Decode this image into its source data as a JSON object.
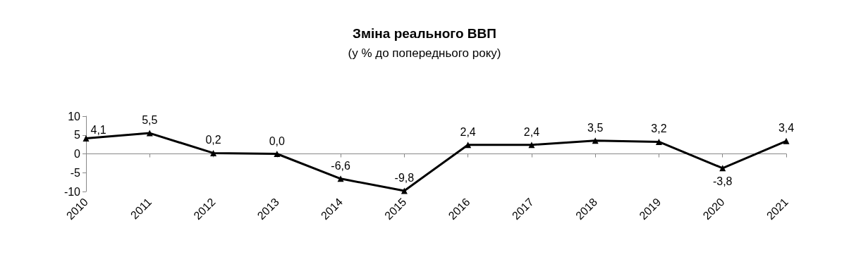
{
  "chart_data": {
    "type": "line",
    "title": "Зміна реального ВВП",
    "subtitle": "(у % до попереднього року)",
    "categories": [
      "2010",
      "2011",
      "2012",
      "2013",
      "2014",
      "2015",
      "2016",
      "2017",
      "2018",
      "2019",
      "2020",
      "2021"
    ],
    "series": [
      {
        "color": "#000000",
        "values": [
          4.1,
          5.5,
          0.2,
          0.0,
          -6.6,
          -9.8,
          2.4,
          2.4,
          3.5,
          3.2,
          -3.8,
          3.4
        ],
        "value_labels": [
          "4,1",
          "5,5",
          "0,2",
          "0,0",
          "-6,6",
          "-9,8",
          "2,4",
          "2,4",
          "3,5",
          "3,2",
          "-3,8",
          "3,4"
        ]
      }
    ],
    "ylim": [
      -10,
      10
    ],
    "yticks": [
      -10,
      -5,
      0,
      5,
      10
    ],
    "marker": "triangle",
    "line_style": "solid"
  }
}
